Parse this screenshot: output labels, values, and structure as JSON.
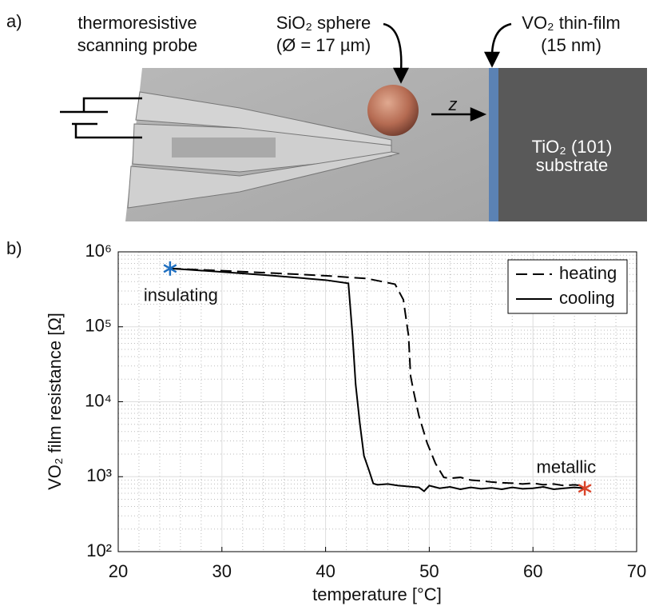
{
  "panel_a": {
    "label": "a)",
    "probe_label": [
      "thermoresistive",
      "scanning probe"
    ],
    "sphere_label": [
      "SiO₂ sphere",
      "(Ø = 17 µm)"
    ],
    "film_label": [
      "VO₂ thin-film",
      "(15 nm)"
    ],
    "axis_label": "z",
    "substrate_label": [
      "TiO₂ (101)",
      "substrate"
    ]
  },
  "chart_data": {
    "type": "line",
    "panel_label": "b)",
    "xlabel": "temperature [°C]",
    "ylabel": "VO₂ film resistance [Ω]",
    "xlim": [
      20,
      70
    ],
    "xticks": [
      20,
      30,
      40,
      50,
      60,
      70
    ],
    "ylim": [
      100,
      1000000
    ],
    "ylog": true,
    "yticks": [
      {
        "value": 100,
        "label": "10²"
      },
      {
        "value": 1000,
        "label": "10³"
      },
      {
        "value": 10000,
        "label": "10⁴"
      },
      {
        "value": 100000,
        "label": "10⁵"
      },
      {
        "value": 1000000,
        "label": "10⁶"
      }
    ],
    "grid": true,
    "minor_grid": true,
    "legend": "upper right",
    "series": [
      {
        "name": "heating",
        "color": "#000000",
        "dash": "dashed",
        "x": [
          25,
          30,
          35,
          40,
          44,
          46.7,
          47.5,
          48.0,
          48.2,
          48.5,
          49.0,
          49.8,
          50.6,
          51.4,
          52,
          53,
          54,
          55,
          56,
          57,
          58,
          59,
          60,
          61,
          62,
          63,
          64,
          65
        ],
        "values": [
          600000,
          560000,
          520000,
          480000,
          440000,
          370000,
          230000,
          76000,
          22000,
          13500,
          6500,
          2800,
          1500,
          980,
          950,
          980,
          900,
          880,
          850,
          830,
          820,
          800,
          820,
          780,
          800,
          760,
          780,
          750
        ]
      },
      {
        "name": "cooling",
        "color": "#000000",
        "dash": "solid",
        "x": [
          25,
          30,
          35,
          40,
          42.2,
          42.6,
          42.9,
          43.3,
          43.7,
          44.2,
          44.6,
          45,
          46,
          47,
          48,
          49,
          49.5,
          50,
          51,
          52,
          53,
          54,
          55,
          56,
          57,
          58,
          59,
          60,
          61,
          62,
          63,
          64,
          65
        ],
        "values": [
          600000,
          540000,
          480000,
          420000,
          380000,
          76000,
          17000,
          5200,
          1900,
          1200,
          810,
          780,
          800,
          760,
          740,
          720,
          640,
          760,
          700,
          730,
          680,
          720,
          690,
          710,
          680,
          720,
          690,
          700,
          730,
          680,
          700,
          720,
          700
        ]
      }
    ],
    "markers": [
      {
        "name": "insulating",
        "x": 25,
        "y": 600000,
        "color": "#1f6fc0"
      },
      {
        "name": "metallic",
        "x": 65,
        "y": 700,
        "color": "#d9442a"
      }
    ]
  }
}
